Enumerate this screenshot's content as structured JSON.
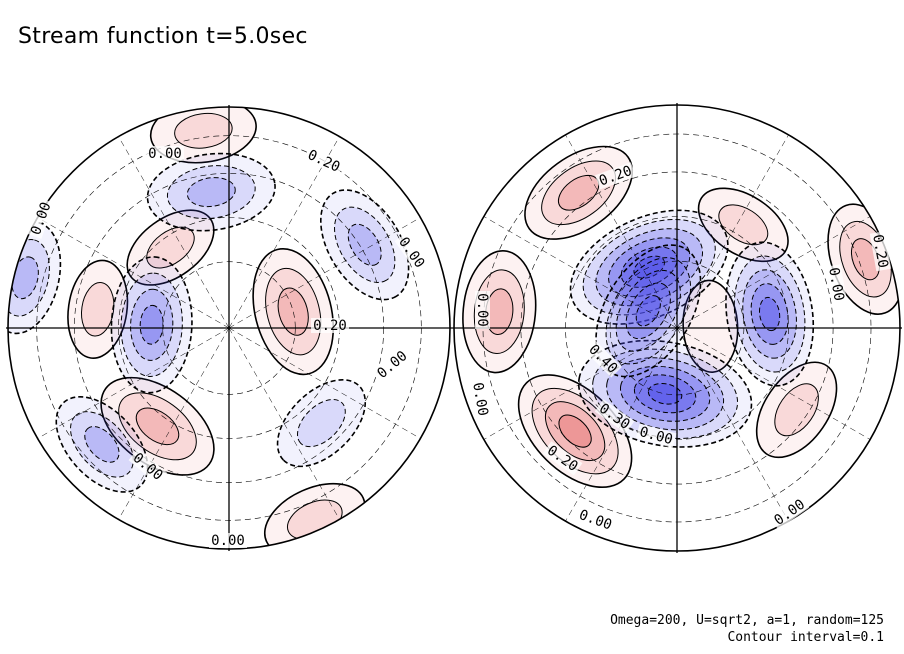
{
  "title": "Stream function t=5.0sec",
  "footer": {
    "params": "Omega=200, U=sqrt2, a=1, random=125",
    "contour": "Contour interval=0.1"
  },
  "colors": {
    "positive": "#e04848",
    "negative": "#4848e8",
    "line": "#000000"
  },
  "chart_data": {
    "type": "contour",
    "contour_interval": 0.1,
    "panels": [
      {
        "hemisphere": "left",
        "labels": [
          "0.00",
          "0.20",
          "0.00",
          "0.00",
          "0.20",
          "0.00",
          "0.00",
          "0.00"
        ],
        "positive_centers": [
          {
            "lon": 0.25,
            "r": 0.3,
            "value": 0.3
          },
          {
            "lon": -2.2,
            "r": 0.55,
            "value": 0.3
          },
          {
            "lon": 1.7,
            "r": 0.9,
            "value": 0.15
          },
          {
            "lon": -1.15,
            "r": 0.95,
            "value": 0.15
          },
          {
            "lon": 3.0,
            "r": 0.6,
            "value": 0.1
          },
          {
            "lon": 2.2,
            "r": 0.45,
            "value": 0.1
          }
        ],
        "negative_centers": [
          {
            "lon": 3.1,
            "r": 0.35,
            "value": -0.35
          },
          {
            "lon": 1.7,
            "r": 0.62,
            "value": -0.3
          },
          {
            "lon": 0.55,
            "r": 0.72,
            "value": -0.25
          },
          {
            "lon": -2.4,
            "r": 0.78,
            "value": -0.2
          },
          {
            "lon": -0.8,
            "r": 0.6,
            "value": -0.15
          },
          {
            "lon": 2.9,
            "r": 0.95,
            "value": -0.2
          }
        ]
      },
      {
        "hemisphere": "right",
        "labels": [
          "0.20",
          "0.20",
          "0.00",
          "0.00",
          "0.40",
          "0.30",
          "0.00",
          "0.00",
          "0.20",
          "0.00",
          "0.00"
        ],
        "positive_centers": [
          {
            "lon": -2.35,
            "r": 0.65,
            "value": 0.35
          },
          {
            "lon": 3.05,
            "r": 0.8,
            "value": 0.25
          },
          {
            "lon": 2.2,
            "r": 0.75,
            "value": 0.25
          },
          {
            "lon": 0.35,
            "r": 0.9,
            "value": 0.2
          },
          {
            "lon": -0.6,
            "r": 0.65,
            "value": 0.15
          },
          {
            "lon": 1.0,
            "r": 0.55,
            "value": 0.1
          },
          {
            "lon": 0.05,
            "r": 0.15,
            "value": 0.05
          }
        ],
        "negative_centers": [
          {
            "lon": -1.75,
            "r": 0.3,
            "value": -0.6
          },
          {
            "lon": 2.0,
            "r": 0.3,
            "value": -0.55
          },
          {
            "lon": 0.15,
            "r": 0.42,
            "value": -0.4
          },
          {
            "lon": 2.6,
            "r": 0.15,
            "value": -0.4
          }
        ]
      }
    ]
  }
}
